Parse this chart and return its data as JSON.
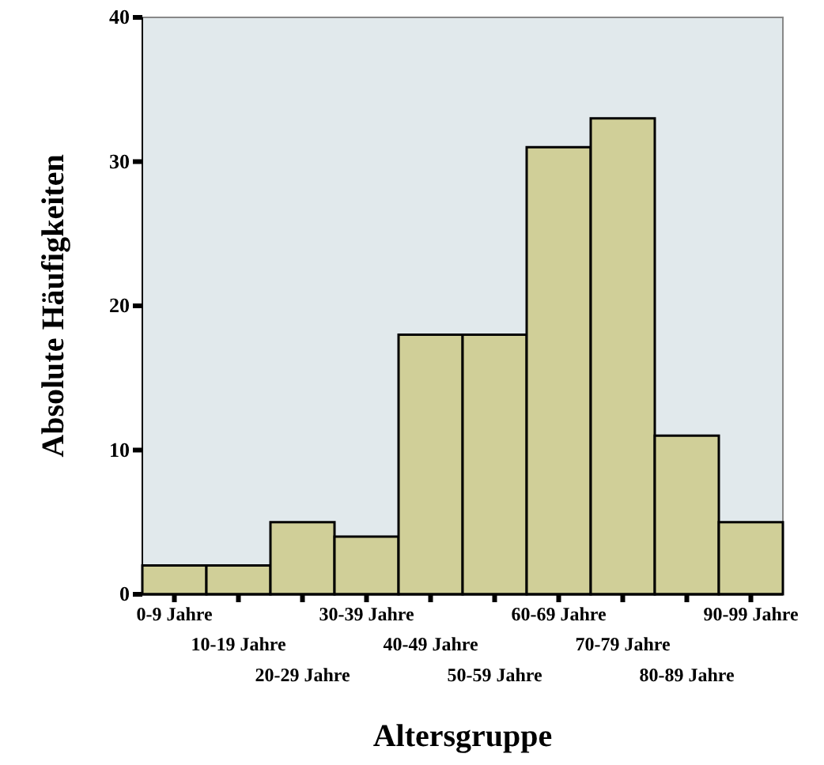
{
  "chart_data": {
    "type": "bar",
    "xlabel": "Altersgruppe",
    "ylabel": "Absolute Häufigkeiten",
    "categories": [
      "0-9 Jahre",
      "10-19 Jahre",
      "20-29 Jahre",
      "30-39 Jahre",
      "40-49 Jahre",
      "50-59 Jahre",
      "60-69 Jahre",
      "70-79 Jahre",
      "80-89 Jahre",
      "90-99 Jahre"
    ],
    "values": [
      2,
      2,
      5,
      4,
      18,
      18,
      31,
      33,
      11,
      5
    ],
    "color": "#d0cf98",
    "ylim": [
      0,
      40
    ],
    "yticks": [
      0,
      10,
      20,
      30,
      40
    ],
    "grid": false
  }
}
